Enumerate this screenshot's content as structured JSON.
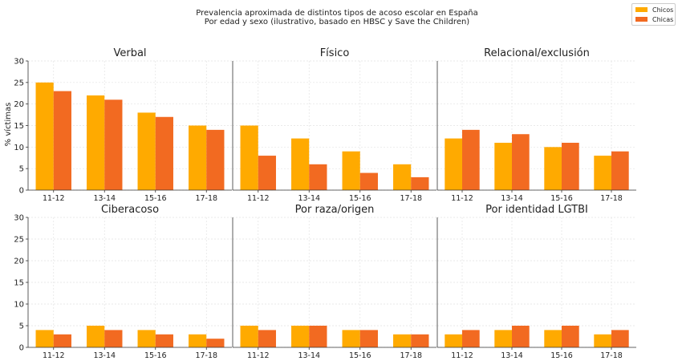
{
  "chart_data": {
    "type": "bar",
    "suptitle": "Prevalencia aproximada de distintos tipos de acoso escolar en España",
    "subtitle": "Por edad y sexo (ilustrativo, basado en HBSC y Save the Children)",
    "ylabel": "% víctimas",
    "ylim": [
      0,
      30
    ],
    "yticks": [
      0,
      5,
      10,
      15,
      20,
      25,
      30
    ],
    "categories": [
      "11-12",
      "13-14",
      "15-16",
      "17-18"
    ],
    "legend": {
      "position": "top-right",
      "entries": [
        "Chicos",
        "Chicas"
      ]
    },
    "colors": {
      "Chicos": "#FFAA00",
      "Chicas": "#F26A21"
    },
    "panels": [
      {
        "title": "Verbal",
        "series": [
          {
            "name": "Chicos",
            "values": [
              25,
              22,
              18,
              15
            ]
          },
          {
            "name": "Chicas",
            "values": [
              23,
              21,
              17,
              14
            ]
          }
        ]
      },
      {
        "title": "Físico",
        "series": [
          {
            "name": "Chicos",
            "values": [
              15,
              12,
              9,
              6
            ]
          },
          {
            "name": "Chicas",
            "values": [
              8,
              6,
              4,
              3
            ]
          }
        ]
      },
      {
        "title": "Relacional/exclusión",
        "series": [
          {
            "name": "Chicos",
            "values": [
              12,
              11,
              10,
              8
            ]
          },
          {
            "name": "Chicas",
            "values": [
              14,
              13,
              11,
              9
            ]
          }
        ]
      },
      {
        "title": "Ciberacoso",
        "series": [
          {
            "name": "Chicos",
            "values": [
              4,
              5,
              4,
              3
            ]
          },
          {
            "name": "Chicas",
            "values": [
              3,
              4,
              3,
              2
            ]
          }
        ]
      },
      {
        "title": "Por raza/origen",
        "series": [
          {
            "name": "Chicos",
            "values": [
              5,
              5,
              4,
              3
            ]
          },
          {
            "name": "Chicas",
            "values": [
              4,
              5,
              4,
              3
            ]
          }
        ]
      },
      {
        "title": "Por identidad LGTBI",
        "series": [
          {
            "name": "Chicos",
            "values": [
              3,
              4,
              4,
              3
            ]
          },
          {
            "name": "Chicas",
            "values": [
              4,
              5,
              5,
              4
            ]
          }
        ]
      }
    ]
  }
}
